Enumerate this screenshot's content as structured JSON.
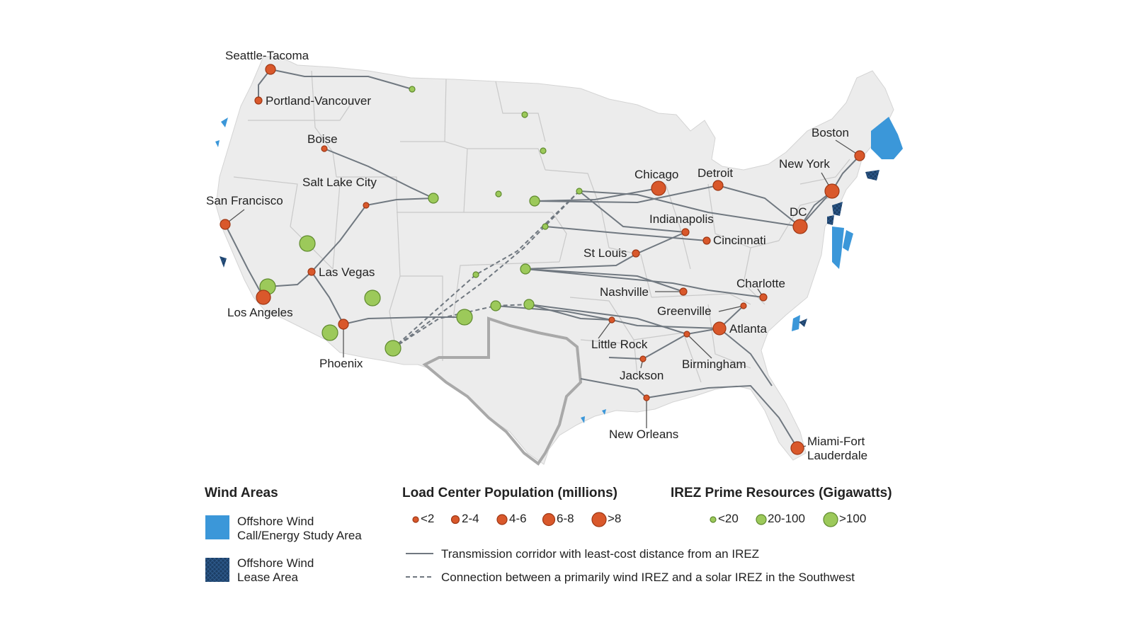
{
  "map": {
    "colors": {
      "land": "#ececec",
      "load_center": "#d9582b",
      "irez": "#9cc95a",
      "offshore_call_area": "#3b97d9",
      "offshore_lease_area": "#1c3f66",
      "transmission": "#707880"
    },
    "cities": {
      "seattle": "Seattle-Tacoma",
      "portland": "Portland-Vancouver",
      "boise": "Boise",
      "saltlake": "Salt Lake City",
      "sanfran": "San Francisco",
      "lasvegas": "Las Vegas",
      "losangeles": "Los Angeles",
      "phoenix": "Phoenix",
      "chicago": "Chicago",
      "detroit": "Detroit",
      "boston": "Boston",
      "newyork": "New York",
      "dc": "DC",
      "indianapolis": "Indianapolis",
      "cincinnati": "Cincinnati",
      "stlouis": "St Louis",
      "nashville": "Nashville",
      "charlotte": "Charlotte",
      "greenville": "Greenville",
      "atlanta": "Atlanta",
      "littlerock": "Little Rock",
      "birmingham": "Birmingham",
      "jackson": "Jackson",
      "neworleans": "New Orleans",
      "miami_1": "Miami-Fort",
      "miami_2": "Lauderdale"
    }
  },
  "legend": {
    "wind": {
      "title": "Wind Areas",
      "call_area_line1": "Offshore Wind",
      "call_area_line2": "Call/Energy Study Area",
      "lease_area_line1": "Offshore Wind",
      "lease_area_line2": "Lease Area"
    },
    "load": {
      "title": "Load Center Population (millions)",
      "sizes": [
        "<2",
        "2-4",
        "4-6",
        "6-8",
        ">8"
      ]
    },
    "irez": {
      "title": "IREZ Prime Resources (Gigawatts)",
      "sizes": [
        "<20",
        "20-100",
        ">100"
      ]
    },
    "lines": {
      "solid": "Transmission corridor with least-cost distance from an IREZ",
      "dashed": "Connection between a primarily wind IREZ and a solar IREZ in the Southwest"
    }
  }
}
